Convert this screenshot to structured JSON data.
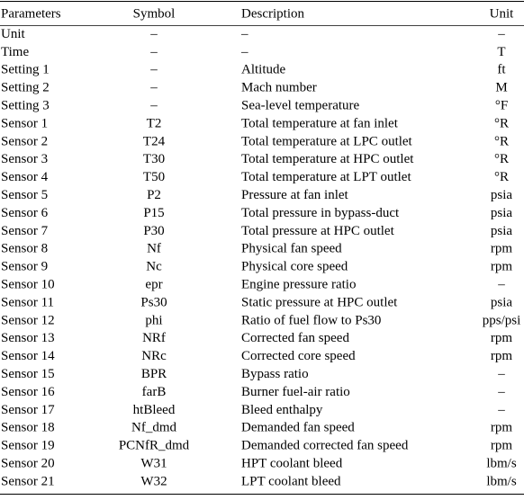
{
  "table": {
    "header": [
      "Parameters",
      "Symbol",
      "Description",
      "Unit"
    ],
    "rows": [
      [
        "Unit",
        "–",
        "–",
        "–"
      ],
      [
        "Time",
        "–",
        "–",
        "T"
      ],
      [
        "Setting 1",
        "–",
        "Altitude",
        "ft"
      ],
      [
        "Setting 2",
        "–",
        "Mach number",
        "M"
      ],
      [
        "Setting 3",
        "–",
        "Sea-level temperature",
        "°F"
      ],
      [
        "Sensor 1",
        "T2",
        "Total temperature at fan inlet",
        "°R"
      ],
      [
        "Sensor 2",
        "T24",
        "Total temperature at LPC outlet",
        "°R"
      ],
      [
        "Sensor 3",
        "T30",
        "Total temperature at HPC outlet",
        "°R"
      ],
      [
        "Sensor 4",
        "T50",
        "Total temperature at LPT outlet",
        "°R"
      ],
      [
        "Sensor 5",
        "P2",
        "Pressure at fan inlet",
        "psia"
      ],
      [
        "Sensor 6",
        "P15",
        "Total pressure in bypass-duct",
        "psia"
      ],
      [
        "Sensor 7",
        "P30",
        "Total pressure at HPC outlet",
        "psia"
      ],
      [
        "Sensor 8",
        "Nf",
        "Physical fan speed",
        "rpm"
      ],
      [
        "Sensor 9",
        "Nc",
        "Physical core speed",
        "rpm"
      ],
      [
        "Sensor 10",
        "epr",
        "Engine pressure ratio",
        "–"
      ],
      [
        "Sensor 11",
        "Ps30",
        "Static pressure at HPC outlet",
        "psia"
      ],
      [
        "Sensor 12",
        "phi",
        "Ratio of fuel flow to Ps30",
        "pps/psi"
      ],
      [
        "Sensor 13",
        "NRf",
        "Corrected fan speed",
        "rpm"
      ],
      [
        "Sensor 14",
        "NRc",
        "Corrected core speed",
        "rpm"
      ],
      [
        "Sensor 15",
        "BPR",
        "Bypass ratio",
        "–"
      ],
      [
        "Sensor 16",
        "farB",
        "Burner fuel-air ratio",
        "–"
      ],
      [
        "Sensor 17",
        "htBleed",
        "Bleed enthalpy",
        "–"
      ],
      [
        "Sensor 18",
        "Nf_dmd",
        "Demanded fan speed",
        "rpm"
      ],
      [
        "Sensor 19",
        "PCNfR_dmd",
        "Demanded corrected fan speed",
        "rpm"
      ],
      [
        "Sensor 20",
        "W31",
        "HPT coolant bleed",
        "lbm/s"
      ],
      [
        "Sensor 21",
        "W32",
        "LPT coolant bleed",
        "lbm/s"
      ]
    ]
  }
}
